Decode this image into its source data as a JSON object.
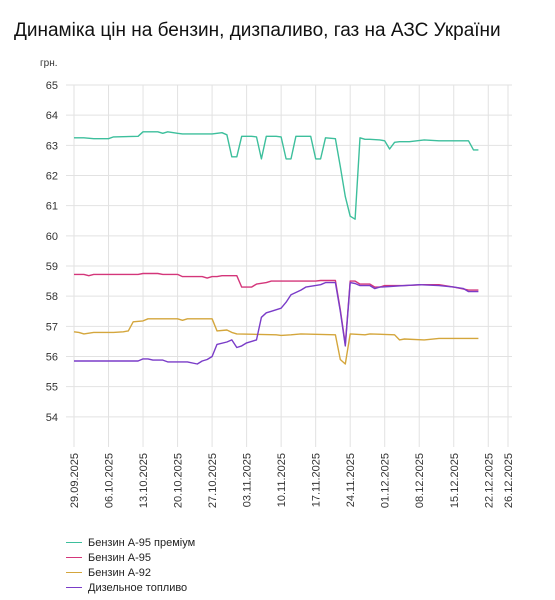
{
  "chart_data": {
    "type": "line",
    "title": "Динаміка цін на бензин, дизпаливо, газ на АЗС України",
    "ylabel": "грн.",
    "xlabel": "",
    "ylim": [
      53,
      65
    ],
    "yticks": [
      54,
      55,
      56,
      57,
      58,
      59,
      60,
      61,
      62,
      63,
      64,
      65
    ],
    "grid": true,
    "legend_position": "bottom-left",
    "x_start": "2025-09-29",
    "xticks": [
      "29.09.2025",
      "06.10.2025",
      "13.10.2025",
      "20.10.2025",
      "27.10.2025",
      "03.11.2025",
      "10.11.2025",
      "17.11.2025",
      "24.11.2025",
      "01.12.2025",
      "08.12.2025",
      "15.12.2025",
      "22.12.2025",
      "26.12.2025"
    ],
    "series": [
      {
        "name": "Бензин А-95 преміум",
        "color": "#3dbf9c",
        "points": [
          [
            "2025-09-29",
            63.25
          ],
          [
            "2025-10-01",
            63.25
          ],
          [
            "2025-10-03",
            63.22
          ],
          [
            "2025-10-06",
            63.22
          ],
          [
            "2025-10-07",
            63.28
          ],
          [
            "2025-10-12",
            63.3
          ],
          [
            "2025-10-13",
            63.45
          ],
          [
            "2025-10-16",
            63.45
          ],
          [
            "2025-10-17",
            63.4
          ],
          [
            "2025-10-18",
            63.45
          ],
          [
            "2025-10-20",
            63.4
          ],
          [
            "2025-10-21",
            63.38
          ],
          [
            "2025-10-27",
            63.38
          ],
          [
            "2025-10-29",
            63.42
          ],
          [
            "2025-10-30",
            63.35
          ],
          [
            "2025-10-31",
            62.62
          ],
          [
            "2025-11-01",
            62.62
          ],
          [
            "2025-11-02",
            63.3
          ],
          [
            "2025-11-04",
            63.3
          ],
          [
            "2025-11-05",
            63.28
          ],
          [
            "2025-11-06",
            62.55
          ],
          [
            "2025-11-07",
            63.3
          ],
          [
            "2025-11-09",
            63.3
          ],
          [
            "2025-11-10",
            63.28
          ],
          [
            "2025-11-11",
            62.55
          ],
          [
            "2025-11-12",
            62.55
          ],
          [
            "2025-11-13",
            63.3
          ],
          [
            "2025-11-16",
            63.3
          ],
          [
            "2025-11-17",
            62.55
          ],
          [
            "2025-11-18",
            62.55
          ],
          [
            "2025-11-19",
            63.25
          ],
          [
            "2025-11-21",
            63.22
          ],
          [
            "2025-11-22",
            62.3
          ],
          [
            "2025-11-23",
            61.3
          ],
          [
            "2025-11-24",
            60.65
          ],
          [
            "2025-11-25",
            60.55
          ],
          [
            "2025-11-26",
            63.25
          ],
          [
            "2025-11-27",
            63.2
          ],
          [
            "2025-11-28",
            63.2
          ],
          [
            "2025-11-30",
            63.18
          ],
          [
            "2025-12-01",
            63.15
          ],
          [
            "2025-12-02",
            62.88
          ],
          [
            "2025-12-03",
            63.1
          ],
          [
            "2025-12-04",
            63.12
          ],
          [
            "2025-12-06",
            63.12
          ],
          [
            "2025-12-09",
            63.18
          ],
          [
            "2025-12-12",
            63.15
          ],
          [
            "2025-12-15",
            63.15
          ],
          [
            "2025-12-18",
            63.15
          ],
          [
            "2025-12-19",
            62.85
          ],
          [
            "2025-12-20",
            62.85
          ]
        ]
      },
      {
        "name": "Бензин А-95",
        "color": "#d4367a",
        "points": [
          [
            "2025-09-29",
            58.72
          ],
          [
            "2025-10-01",
            58.72
          ],
          [
            "2025-10-02",
            58.68
          ],
          [
            "2025-10-03",
            58.72
          ],
          [
            "2025-10-12",
            58.72
          ],
          [
            "2025-10-13",
            58.75
          ],
          [
            "2025-10-16",
            58.75
          ],
          [
            "2025-10-17",
            58.72
          ],
          [
            "2025-10-20",
            58.72
          ],
          [
            "2025-10-21",
            58.65
          ],
          [
            "2025-10-25",
            58.65
          ],
          [
            "2025-10-26",
            58.6
          ],
          [
            "2025-10-27",
            58.65
          ],
          [
            "2025-10-28",
            58.65
          ],
          [
            "2025-10-29",
            58.68
          ],
          [
            "2025-11-01",
            58.68
          ],
          [
            "2025-11-02",
            58.3
          ],
          [
            "2025-11-04",
            58.3
          ],
          [
            "2025-11-05",
            58.4
          ],
          [
            "2025-11-07",
            58.45
          ],
          [
            "2025-11-08",
            58.5
          ],
          [
            "2025-11-17",
            58.5
          ],
          [
            "2025-11-18",
            58.52
          ],
          [
            "2025-11-21",
            58.52
          ],
          [
            "2025-11-22",
            57.55
          ],
          [
            "2025-11-23",
            56.4
          ],
          [
            "2025-11-24",
            58.5
          ],
          [
            "2025-11-25",
            58.5
          ],
          [
            "2025-11-26",
            58.4
          ],
          [
            "2025-11-28",
            58.4
          ],
          [
            "2025-11-29",
            58.3
          ],
          [
            "2025-11-30",
            58.3
          ],
          [
            "2025-12-01",
            58.35
          ],
          [
            "2025-12-05",
            58.35
          ],
          [
            "2025-12-09",
            58.38
          ],
          [
            "2025-12-12",
            58.38
          ],
          [
            "2025-12-15",
            58.3
          ],
          [
            "2025-12-18",
            58.2
          ],
          [
            "2025-12-20",
            58.2
          ]
        ]
      },
      {
        "name": "Бензин А-92",
        "color": "#d4a63c",
        "points": [
          [
            "2025-09-29",
            56.82
          ],
          [
            "2025-09-30",
            56.8
          ],
          [
            "2025-10-01",
            56.75
          ],
          [
            "2025-10-03",
            56.8
          ],
          [
            "2025-10-07",
            56.8
          ],
          [
            "2025-10-09",
            56.82
          ],
          [
            "2025-10-10",
            56.85
          ],
          [
            "2025-10-11",
            57.15
          ],
          [
            "2025-10-13",
            57.18
          ],
          [
            "2025-10-14",
            57.25
          ],
          [
            "2025-10-20",
            57.25
          ],
          [
            "2025-10-21",
            57.2
          ],
          [
            "2025-10-22",
            57.25
          ],
          [
            "2025-10-27",
            57.25
          ],
          [
            "2025-10-28",
            56.85
          ],
          [
            "2025-10-30",
            56.88
          ],
          [
            "2025-10-31",
            56.8
          ],
          [
            "2025-11-01",
            56.75
          ],
          [
            "2025-11-09",
            56.72
          ],
          [
            "2025-11-10",
            56.7
          ],
          [
            "2025-11-12",
            56.72
          ],
          [
            "2025-11-14",
            56.75
          ],
          [
            "2025-11-21",
            56.72
          ],
          [
            "2025-11-22",
            55.9
          ],
          [
            "2025-11-23",
            55.75
          ],
          [
            "2025-11-24",
            56.75
          ],
          [
            "2025-11-27",
            56.72
          ],
          [
            "2025-11-28",
            56.75
          ],
          [
            "2025-12-03",
            56.72
          ],
          [
            "2025-12-04",
            56.55
          ],
          [
            "2025-12-05",
            56.58
          ],
          [
            "2025-12-09",
            56.55
          ],
          [
            "2025-12-12",
            56.6
          ],
          [
            "2025-12-20",
            56.6
          ]
        ]
      },
      {
        "name": "Дизельное топливо",
        "color": "#7a3cc8",
        "points": [
          [
            "2025-09-29",
            55.85
          ],
          [
            "2025-10-12",
            55.85
          ],
          [
            "2025-10-13",
            55.92
          ],
          [
            "2025-10-14",
            55.92
          ],
          [
            "2025-10-15",
            55.88
          ],
          [
            "2025-10-17",
            55.88
          ],
          [
            "2025-10-18",
            55.82
          ],
          [
            "2025-10-22",
            55.82
          ],
          [
            "2025-10-24",
            55.75
          ],
          [
            "2025-10-25",
            55.85
          ],
          [
            "2025-10-26",
            55.9
          ],
          [
            "2025-10-27",
            56.0
          ],
          [
            "2025-10-28",
            56.4
          ],
          [
            "2025-10-30",
            56.48
          ],
          [
            "2025-10-31",
            56.55
          ],
          [
            "2025-11-01",
            56.3
          ],
          [
            "2025-11-02",
            56.35
          ],
          [
            "2025-11-03",
            56.45
          ],
          [
            "2025-11-05",
            56.55
          ],
          [
            "2025-11-06",
            57.3
          ],
          [
            "2025-11-07",
            57.45
          ],
          [
            "2025-11-08",
            57.5
          ],
          [
            "2025-11-10",
            57.6
          ],
          [
            "2025-11-11",
            57.8
          ],
          [
            "2025-11-12",
            58.05
          ],
          [
            "2025-11-14",
            58.2
          ],
          [
            "2025-11-15",
            58.3
          ],
          [
            "2025-11-18",
            58.38
          ],
          [
            "2025-11-19",
            58.45
          ],
          [
            "2025-11-21",
            58.45
          ],
          [
            "2025-11-22",
            57.5
          ],
          [
            "2025-11-23",
            56.35
          ],
          [
            "2025-11-24",
            58.45
          ],
          [
            "2025-11-25",
            58.42
          ],
          [
            "2025-11-26",
            58.35
          ],
          [
            "2025-11-28",
            58.35
          ],
          [
            "2025-11-29",
            58.25
          ],
          [
            "2025-11-30",
            58.3
          ],
          [
            "2025-12-02",
            58.32
          ],
          [
            "2025-12-05",
            58.35
          ],
          [
            "2025-12-08",
            58.38
          ],
          [
            "2025-12-12",
            58.35
          ],
          [
            "2025-12-15",
            58.3
          ],
          [
            "2025-12-17",
            58.25
          ],
          [
            "2025-12-18",
            58.15
          ],
          [
            "2025-12-20",
            58.15
          ]
        ]
      }
    ]
  }
}
